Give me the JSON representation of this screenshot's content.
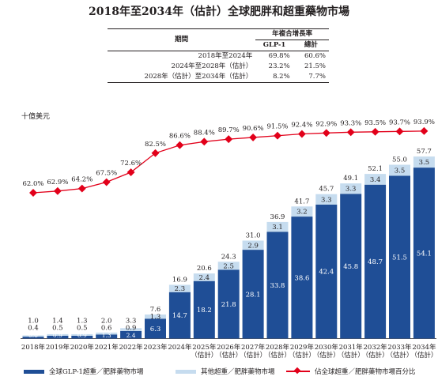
{
  "title": "2018年至2034年（估計）全球肥胖和超重藥物市場",
  "cagr_table": {
    "header_period": "期間",
    "header_cagr": "年複合增長率",
    "col_glp1": "GLP-1",
    "col_total": "總計",
    "rows": [
      {
        "period": "2018年至2024年",
        "glp1": "69.8%",
        "total": "60.6%"
      },
      {
        "period": "2024年至2028年（估計）",
        "glp1": "23.2%",
        "total": "21.5%"
      },
      {
        "period": "2028年（估計）至2034年（估計）",
        "glp1": "8.2%",
        "total": "7.7%"
      }
    ]
  },
  "unit_label": "十億美元",
  "legend": {
    "glp1": "全球GLP-1超重／肥胖藥物市場",
    "other": "其他超重／肥胖藥物市場",
    "share": "佔全球超重／肥胖藥物市場百分比"
  },
  "colors": {
    "glp1": "#1f4e96",
    "other": "#c6dcef",
    "share": "#e2001a"
  },
  "chart_data": {
    "type": "bar",
    "stacked": true,
    "categories": [
      "2018年",
      "2019年",
      "2020年",
      "2021年",
      "2022年",
      "2023年",
      "2024年",
      "2025年\n（估計）",
      "2026年\n（估計）",
      "2027年\n（估計）",
      "2028年\n（估計）",
      "2029年\n（估計）",
      "2030年\n（估計）",
      "2031年\n（估計）",
      "2032年\n（估計）",
      "2033年\n（估計）",
      "2034年\n（估計）"
    ],
    "series": [
      {
        "name": "全球GLP-1超重／肥胖藥物市場",
        "values": [
          0.6,
          0.9,
          0.9,
          1.3,
          2.4,
          6.3,
          14.7,
          18.2,
          21.8,
          28.1,
          33.8,
          38.6,
          42.4,
          45.8,
          48.7,
          51.5,
          54.1
        ]
      },
      {
        "name": "其他超重／肥胖藥物市場",
        "values": [
          0.4,
          0.5,
          0.5,
          0.6,
          0.9,
          1.3,
          2.3,
          2.4,
          2.5,
          2.9,
          3.1,
          3.2,
          3.3,
          3.3,
          3.4,
          3.5,
          3.5
        ]
      }
    ],
    "totals": [
      1.0,
      1.4,
      1.3,
      2.0,
      3.3,
      7.6,
      16.9,
      20.6,
      24.3,
      31.0,
      36.9,
      41.7,
      45.7,
      49.1,
      52.1,
      55.0,
      57.7
    ],
    "line_series": {
      "name": "佔全球超重／肥胖藥物市場百分比",
      "values": [
        62.0,
        62.9,
        64.2,
        67.5,
        72.6,
        82.5,
        86.6,
        88.4,
        89.7,
        90.6,
        91.5,
        92.4,
        92.9,
        93.3,
        93.5,
        93.7,
        93.9
      ]
    },
    "ylabel": "十億美元"
  }
}
